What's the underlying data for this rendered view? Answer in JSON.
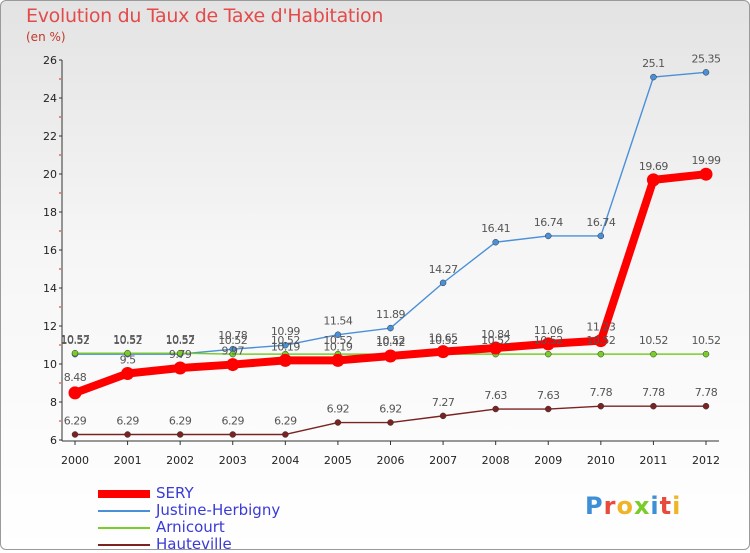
{
  "title": "Evolution du Taux de Taxe d'Habitation",
  "subtitle": "(en %)",
  "chart_data": {
    "type": "line",
    "title": "Evolution du Taux de Taxe d'Habitation",
    "ylabel": "(en %)",
    "xlabel": "",
    "ylim": [
      6,
      26
    ],
    "yticks": [
      6,
      8,
      10,
      12,
      14,
      16,
      18,
      20,
      22,
      24,
      26
    ],
    "categories": [
      "2000",
      "2001",
      "2002",
      "2003",
      "2004",
      "2005",
      "2006",
      "2007",
      "2008",
      "2009",
      "2010",
      "2011",
      "2012"
    ],
    "grid": false,
    "legend": "bottom-left",
    "series": [
      {
        "name": "SERY",
        "color": "#ff0000",
        "values": [
          8.48,
          9.5,
          9.79,
          9.97,
          10.19,
          10.19,
          10.42,
          10.65,
          10.84,
          11.06,
          11.23,
          19.69,
          19.99
        ],
        "labels": [
          "8.48",
          "9.5",
          "9.79",
          "9.97",
          "10.19",
          "10.19",
          "10.42",
          "10.65",
          "10.84",
          "11.06",
          "11.23",
          "19.69",
          "19.99"
        ]
      },
      {
        "name": "Justine-Herbigny",
        "color": "#4a90d9",
        "values": [
          10.52,
          10.52,
          10.52,
          10.78,
          10.99,
          11.54,
          11.89,
          14.27,
          16.41,
          16.74,
          16.74,
          25.1,
          25.35
        ],
        "labels": [
          "10.52",
          "10.52",
          "10.52",
          "10.78",
          "10.99",
          "11.54",
          "11.89",
          "14.27",
          "16.41",
          "16.74",
          "16.74",
          "25.1",
          "25.35"
        ]
      },
      {
        "name": "Arnicourt",
        "color": "#7acc29",
        "values": [
          10.57,
          10.57,
          10.57,
          10.52,
          10.52,
          10.52,
          10.52,
          10.52,
          10.52,
          10.52,
          10.52,
          10.52,
          10.52
        ],
        "labels": [
          "10.57",
          "10.57",
          "10.57",
          "10.52",
          "10.52",
          "10.52",
          "10.52",
          "10.52",
          "10.52",
          "10.52",
          "10.52",
          "10.52",
          "10.52"
        ]
      },
      {
        "name": "Hauteville",
        "color": "#7b2323",
        "values": [
          6.29,
          6.29,
          6.29,
          6.29,
          6.29,
          6.92,
          6.92,
          7.27,
          7.63,
          7.63,
          7.78,
          7.78,
          7.78
        ],
        "labels": [
          "6.29",
          "6.29",
          "6.29",
          "6.29",
          "6.29",
          "6.92",
          "6.92",
          "7.27",
          "7.63",
          "7.63",
          "7.78",
          "7.78",
          "7.78"
        ]
      }
    ]
  },
  "logo": {
    "text": "Proxiti",
    "letters": [
      {
        "ch": "P",
        "color": "#3d8fd6"
      },
      {
        "ch": "r",
        "color": "#e84b3c"
      },
      {
        "ch": "o",
        "color": "#f0b429"
      },
      {
        "ch": "x",
        "color": "#7acc29"
      },
      {
        "ch": "i",
        "color": "#3d8fd6"
      },
      {
        "ch": "t",
        "color": "#e84b3c"
      },
      {
        "ch": "i",
        "color": "#f0b429"
      }
    ]
  }
}
